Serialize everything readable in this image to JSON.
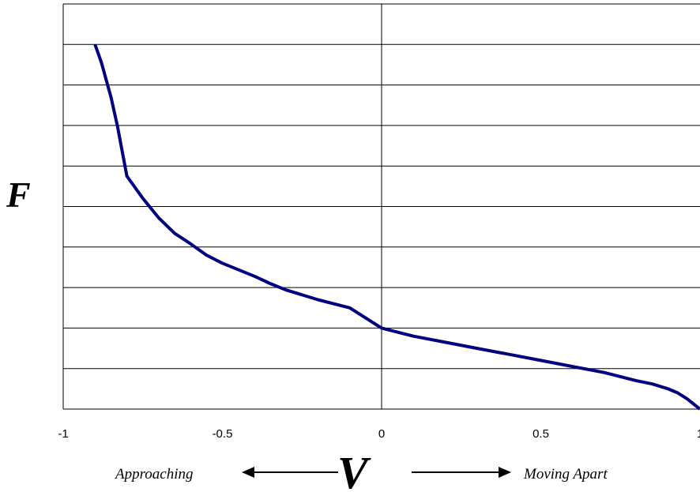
{
  "chart_data": {
    "type": "line",
    "title": "",
    "xlabel": "V",
    "ylabel": "F",
    "xlim": [
      -1,
      1
    ],
    "ylim": [
      0,
      1
    ],
    "grid": "horizontal",
    "x_ticks": [
      "-1",
      "-0.5",
      "0",
      "0.5",
      "1"
    ],
    "annotations": {
      "left": "Approaching",
      "right": "Moving Apart"
    },
    "line_color": "#000080",
    "series": [
      {
        "x": [
          -0.9,
          -0.88,
          -0.85,
          -0.83,
          -0.8,
          -0.75,
          -0.7,
          -0.65,
          -0.6,
          -0.55,
          -0.5,
          -0.4,
          -0.35,
          -0.3,
          -0.2,
          -0.1,
          0,
          0.1,
          0.2,
          0.3,
          0.4,
          0.5,
          0.6,
          0.7,
          0.8,
          0.85,
          0.9,
          0.93,
          0.96,
          1.0
        ],
        "y": [
          0.9,
          0.855,
          0.77,
          0.7,
          0.575,
          0.52,
          0.472,
          0.434,
          0.408,
          0.38,
          0.36,
          0.328,
          0.31,
          0.294,
          0.27,
          0.25,
          0.2,
          0.18,
          0.165,
          0.15,
          0.135,
          0.12,
          0.105,
          0.09,
          0.07,
          0.062,
          0.05,
          0.04,
          0.025,
          0.0
        ]
      }
    ]
  }
}
